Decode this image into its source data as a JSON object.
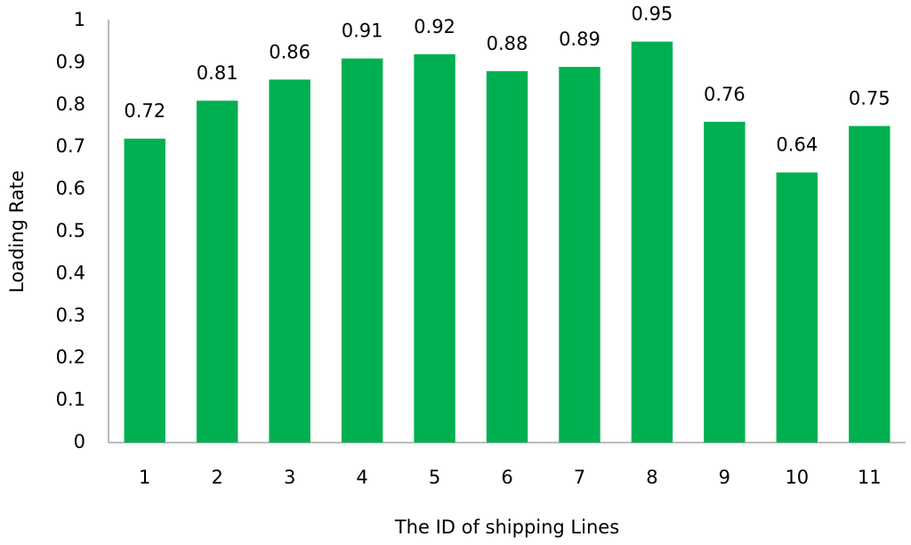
{
  "chart_data": {
    "type": "bar",
    "x_label": "The ID of shipping Lines",
    "y_label": "Loading Rate",
    "categories": [
      "1",
      "2",
      "3",
      "4",
      "5",
      "6",
      "7",
      "8",
      "9",
      "10",
      "11"
    ],
    "values": [
      0.72,
      0.81,
      0.86,
      0.91,
      0.92,
      0.88,
      0.89,
      0.95,
      0.76,
      0.64,
      0.75
    ],
    "color": "#00b050",
    "ylim": [
      0,
      1
    ],
    "yticks": [
      0,
      0.1,
      0.2,
      0.3,
      0.4,
      0.5,
      0.6,
      0.7,
      0.8,
      0.9,
      1
    ],
    "grid": false
  }
}
